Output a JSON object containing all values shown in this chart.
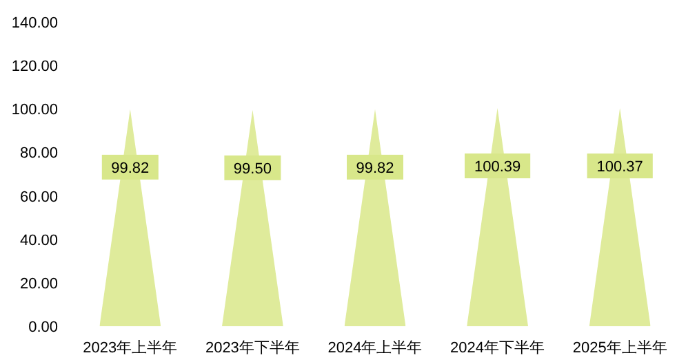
{
  "chart_data": {
    "type": "bar",
    "categories": [
      "2023年上半年",
      "2023年下半年",
      "2024年上半年",
      "2024年下半年",
      "2025年上半年"
    ],
    "values": [
      99.82,
      99.5,
      99.82,
      100.39,
      100.37
    ],
    "value_labels": [
      "99.82",
      "99.50",
      "99.82",
      "100.39",
      "100.37"
    ],
    "color": "#dfeb9b",
    "ylim": [
      0,
      140
    ],
    "yticks": [
      {
        "value": 0,
        "label": "0.00"
      },
      {
        "value": 20,
        "label": "20.00"
      },
      {
        "value": 40,
        "label": "40.00"
      },
      {
        "value": 60,
        "label": "60.00"
      },
      {
        "value": 80,
        "label": "80.00"
      },
      {
        "value": 100,
        "label": "100.00"
      },
      {
        "value": 120,
        "label": "120.00"
      },
      {
        "value": 140,
        "label": "140.00"
      }
    ]
  }
}
